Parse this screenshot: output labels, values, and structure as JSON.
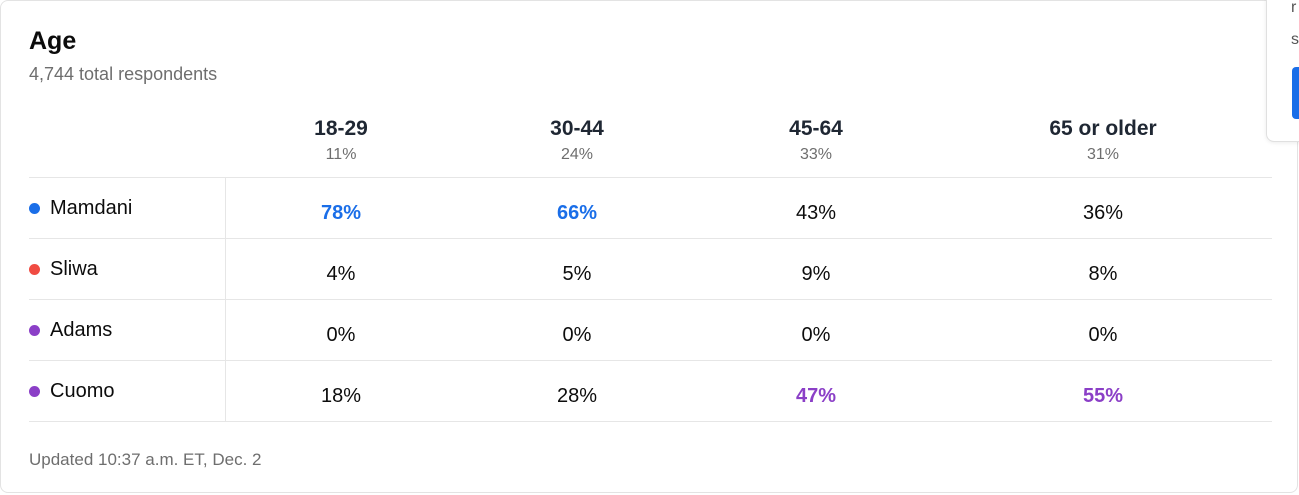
{
  "card": {
    "title": "Age",
    "subtitle": "4,744 total respondents",
    "footer": "Updated 10:37 a.m. ET, Dec. 2"
  },
  "columns": [
    {
      "label": "18-29",
      "share": "11%"
    },
    {
      "label": "30-44",
      "share": "24%"
    },
    {
      "label": "45-64",
      "share": "33%"
    },
    {
      "label": "65 or older",
      "share": "31%"
    }
  ],
  "rows": [
    {
      "name": "Mamdani",
      "color": "#1a6ee8",
      "values": [
        "78%",
        "66%",
        "43%",
        "36%"
      ],
      "leads": [
        true,
        true,
        false,
        false
      ]
    },
    {
      "name": "Sliwa",
      "color": "#f04b42",
      "values": [
        "4%",
        "5%",
        "9%",
        "8%"
      ],
      "leads": [
        false,
        false,
        false,
        false
      ]
    },
    {
      "name": "Adams",
      "color": "#8b3fc7",
      "values": [
        "0%",
        "0%",
        "0%",
        "0%"
      ],
      "leads": [
        false,
        false,
        false,
        false
      ]
    },
    {
      "name": "Cuomo",
      "color": "#8b3fc7",
      "values": [
        "18%",
        "28%",
        "47%",
        "55%"
      ],
      "leads": [
        false,
        false,
        true,
        true
      ]
    }
  ],
  "side_popup": {
    "fragment_1": "r",
    "fragment_2": "s",
    "button_color": "#1a6ee8"
  }
}
